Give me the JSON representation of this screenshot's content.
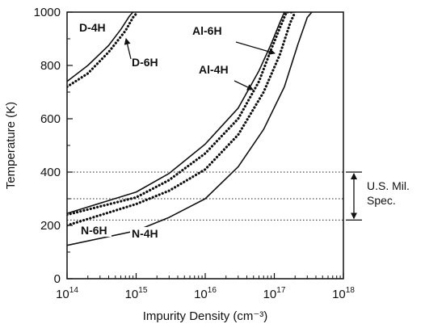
{
  "chart_data": {
    "type": "line",
    "title": "",
    "xlabel": "Impurity Density (cm⁻³)",
    "ylabel": "Temperature (K)",
    "x_scale": "log",
    "x_range": [
      100000000000000.0,
      1e+18
    ],
    "y_range": [
      0,
      1000
    ],
    "x_ticks": [
      {
        "value": 100000000000000.0,
        "base": "10",
        "exp": "14"
      },
      {
        "value": 1000000000000000.0,
        "base": "10",
        "exp": "15"
      },
      {
        "value": 1e+16,
        "base": "10",
        "exp": "16"
      },
      {
        "value": 1e+17,
        "base": "10",
        "exp": "17"
      },
      {
        "value": 1e+18,
        "base": "10",
        "exp": "18"
      }
    ],
    "y_ticks": [
      0,
      200,
      400,
      600,
      800,
      1000
    ],
    "grid": false,
    "series": [
      {
        "name": "D-4H",
        "style": "solid",
        "x": [
          100000000000000.0,
          200000000000000.0,
          400000000000000.0,
          600000000000000.0,
          800000000000000.0,
          900000000000000.0
        ],
        "y": [
          740,
          800,
          875,
          935,
          985,
          1000
        ]
      },
      {
        "name": "D-6H",
        "style": "dotted",
        "x": [
          100000000000000.0,
          200000000000000.0,
          400000000000000.0,
          700000000000000.0,
          900000000000000.0,
          1050000000000000.0
        ],
        "y": [
          720,
          770,
          850,
          930,
          980,
          1000
        ]
      },
      {
        "name": "Al-6H",
        "style": "solid",
        "x": [
          100000000000000.0,
          1000000000000000.0,
          3000000000000000.0,
          1e+16,
          3e+16,
          6e+16,
          9e+16,
          1.2e+17,
          1.4e+17,
          2e+17
        ],
        "y": [
          245,
          325,
          395,
          505,
          640,
          780,
          880,
          960,
          1000,
          1000
        ]
      },
      {
        "name": "Al-4H",
        "style": "dotted",
        "x": [
          100000000000000.0,
          1000000000000000.0,
          3000000000000000.0,
          1e+16,
          3e+16,
          6e+16,
          9e+16,
          1.2e+17,
          1.5e+17,
          1.8e+17
        ],
        "y": [
          240,
          305,
          370,
          470,
          600,
          740,
          860,
          940,
          1000,
          1000
        ]
      },
      {
        "name": "N-6H",
        "style": "dotted",
        "x": [
          100000000000000.0,
          1000000000000000.0,
          3000000000000000.0,
          1e+16,
          3e+16,
          7e+16,
          1.2e+17,
          1.7e+17,
          2e+17
        ],
        "y": [
          200,
          280,
          330,
          410,
          540,
          700,
          840,
          960,
          1000
        ]
      },
      {
        "name": "N-4H",
        "style": "solid",
        "x": [
          100000000000000.0,
          1000000000000000.0,
          3000000000000000.0,
          1e+16,
          3e+16,
          7e+16,
          1.4e+17,
          2.2e+17,
          3e+17,
          3.5e+17
        ],
        "y": [
          125,
          180,
          230,
          300,
          420,
          560,
          720,
          880,
          980,
          1000
        ]
      }
    ],
    "reference_lines": [
      {
        "name": "400",
        "y": 400
      },
      {
        "name": "300",
        "y": 300
      },
      {
        "name": "220",
        "y": 220
      }
    ],
    "annotation": {
      "label_line1": "U.S. Mil.",
      "label_line2": "Spec.",
      "y_min": 220,
      "y_max": 400
    }
  }
}
